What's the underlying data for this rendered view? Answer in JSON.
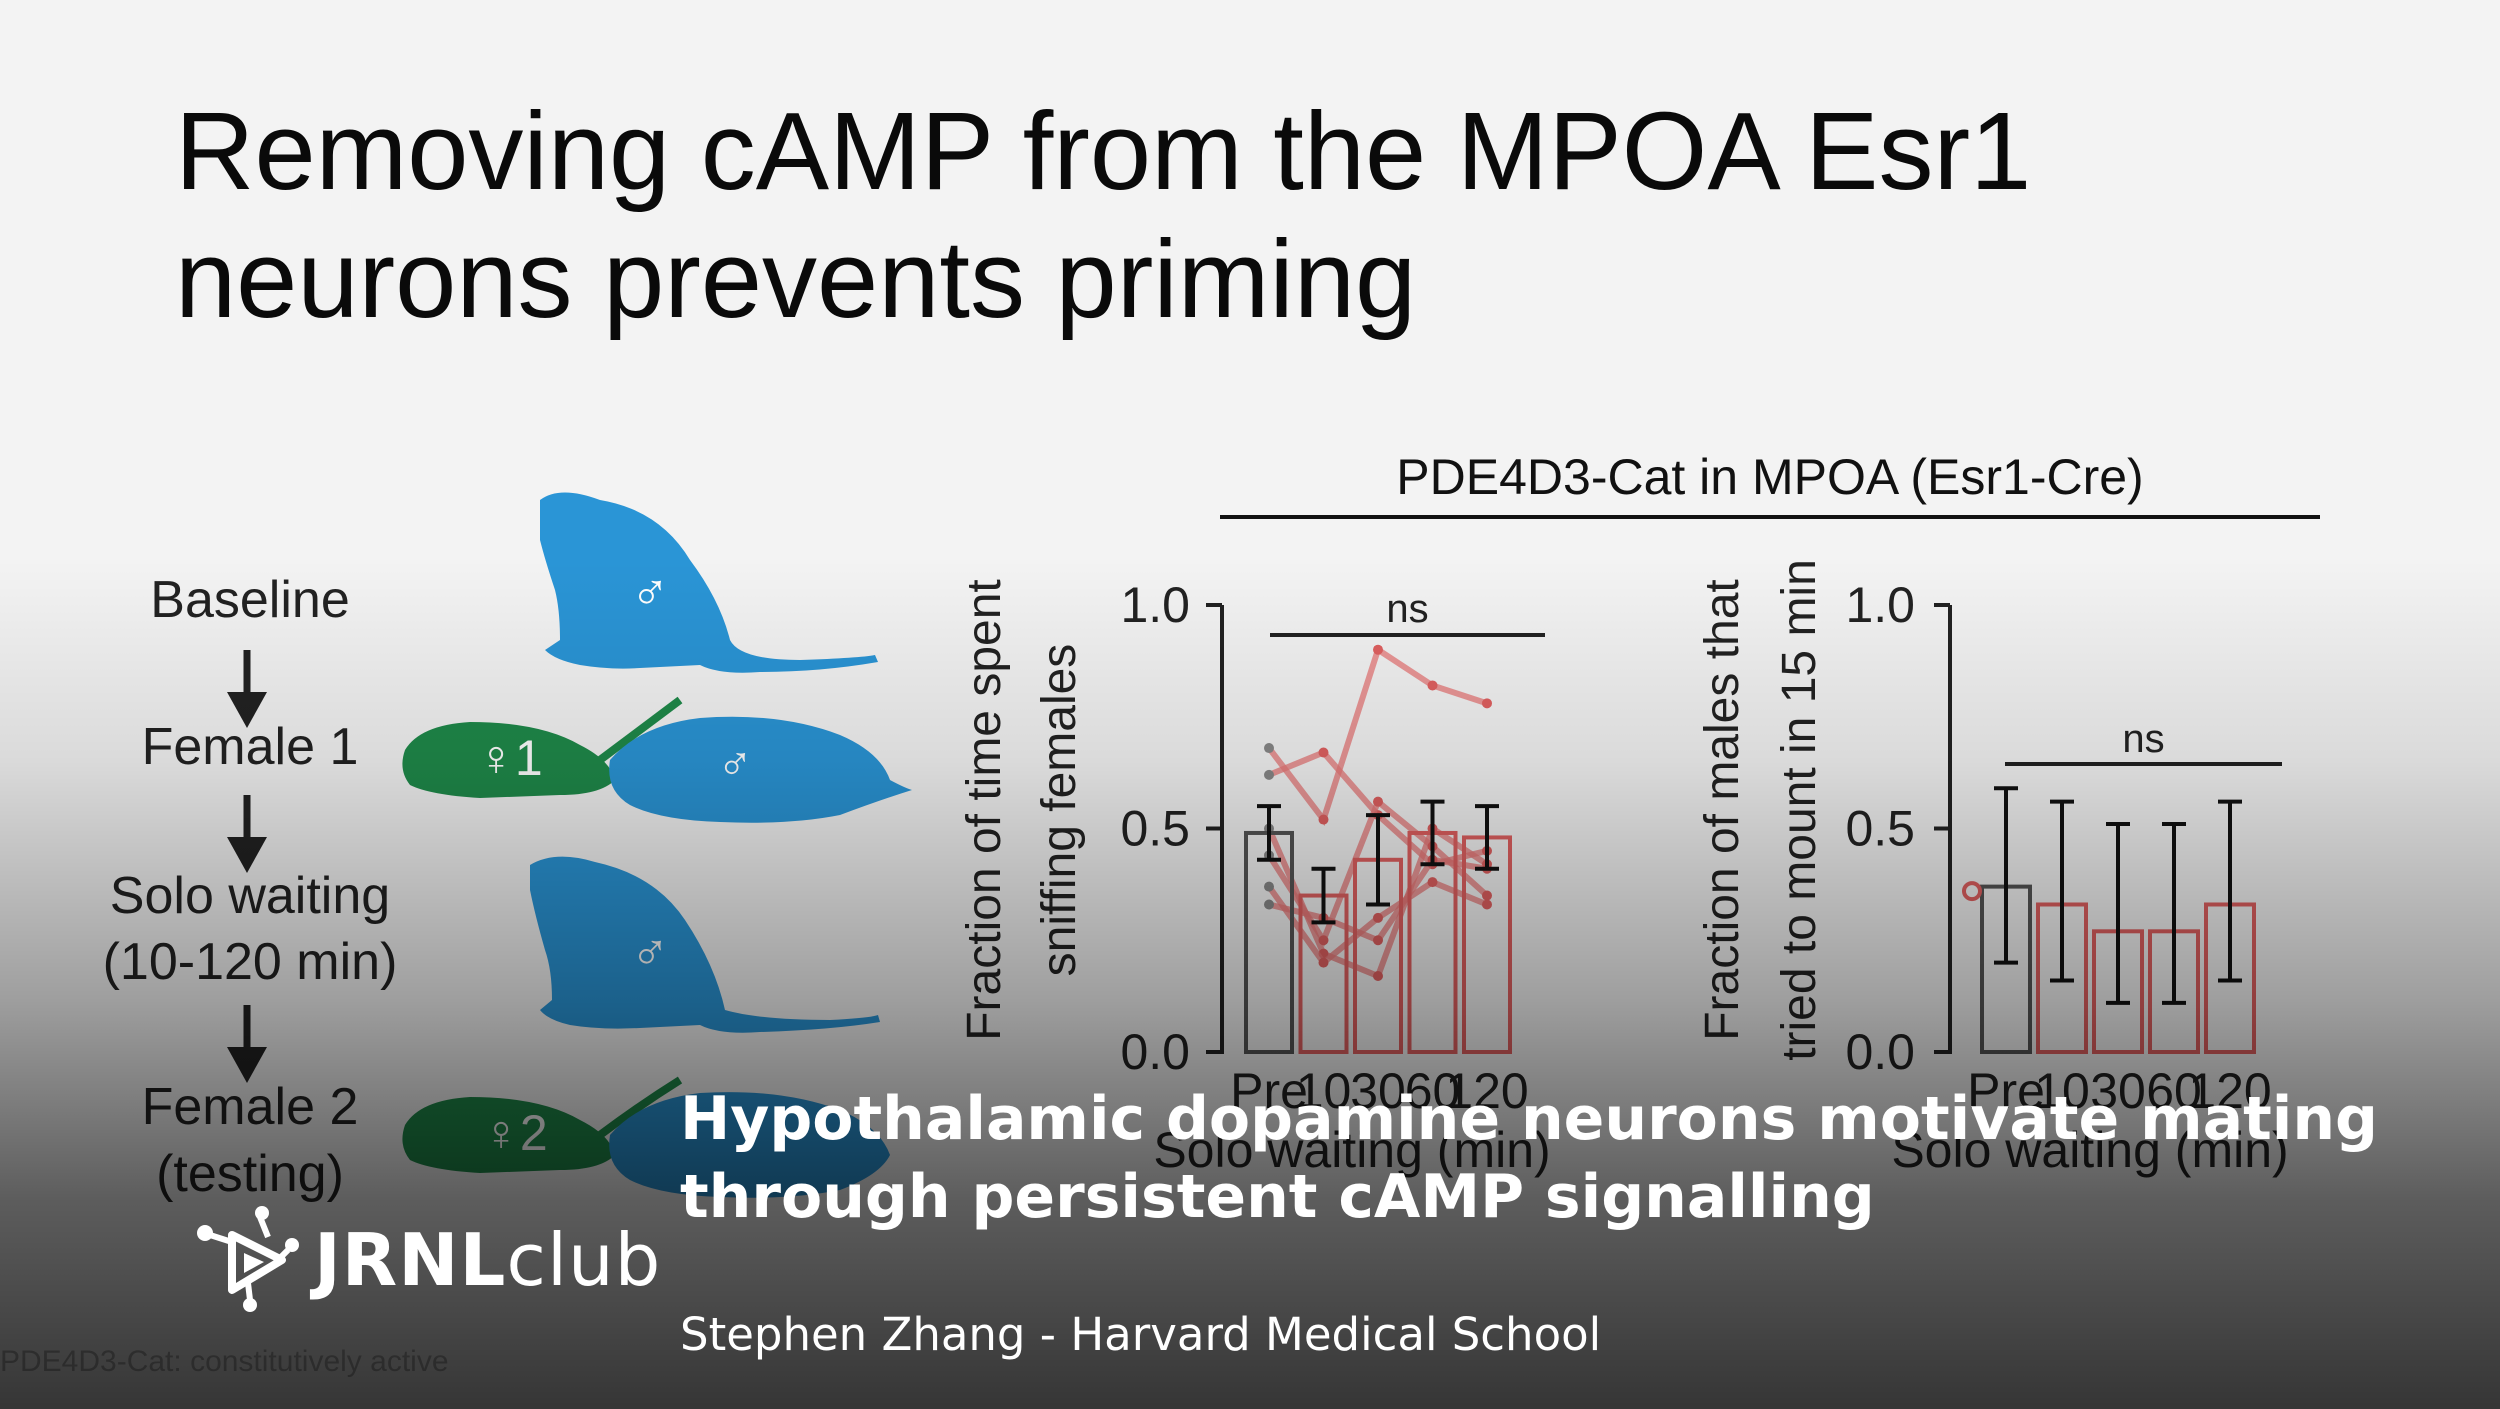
{
  "slide": {
    "title_line1": "Removing cAMP from the MPOA Esr1",
    "title_line2": "neurons prevents priming",
    "diagram": {
      "steps": [
        {
          "label": "Baseline"
        },
        {
          "label": "Female 1"
        },
        {
          "label": "Solo waiting"
        },
        {
          "label": "(10-120 min)"
        },
        {
          "label": "Female 2"
        },
        {
          "label": "(testing)"
        }
      ],
      "male_symbol": "♂",
      "female1_label": "♀1",
      "female2_label": "♀2",
      "colors": {
        "male": "#2a95d6",
        "female": "#1f8a4a"
      }
    },
    "figure_title": "PDE4D3-Cat in MPOA (Esr1-Cre)",
    "footnote": "PDE4D3-Cat: constitutively active"
  },
  "chart_data": [
    {
      "type": "bar",
      "ylabel_line1": "Fraction of time spent",
      "ylabel_line2": "sniffing females",
      "xlabel": "Solo waiting (min)",
      "categories": [
        "Pre",
        "10",
        "30",
        "60",
        "120"
      ],
      "ylim": [
        0,
        1.0
      ],
      "yticks": [
        "0.0",
        "0.5",
        "1.0"
      ],
      "values": [
        0.49,
        0.35,
        0.43,
        0.49,
        0.48
      ],
      "errors": [
        0.06,
        0.06,
        0.1,
        0.07,
        0.07
      ],
      "significance": "ns",
      "colors": {
        "pre": "#555555",
        "test": "#e06060"
      },
      "individual_series": [
        {
          "values": [
            0.68,
            0.52,
            0.9,
            0.82,
            0.78
          ]
        },
        {
          "values": [
            0.62,
            0.67,
            0.53,
            0.42,
            0.45
          ]
        },
        {
          "values": [
            0.5,
            0.22,
            0.17,
            0.5,
            0.42
          ]
        },
        {
          "values": [
            0.44,
            0.25,
            0.56,
            0.46,
            0.35
          ]
        },
        {
          "values": [
            0.33,
            0.3,
            0.25,
            0.43,
            0.41
          ]
        },
        {
          "values": [
            0.37,
            0.2,
            0.3,
            0.38,
            0.33
          ]
        }
      ]
    },
    {
      "type": "bar",
      "ylabel_line1": "Fraction of males that",
      "ylabel_line2": "tried to mount in 15 min",
      "xlabel": "Solo waiting (min)",
      "categories": [
        "Pre",
        "10",
        "30",
        "60",
        "120"
      ],
      "ylim": [
        0,
        1.0
      ],
      "yticks": [
        "0.0",
        "0.5",
        "1.0"
      ],
      "values": [
        0.37,
        0.33,
        0.27,
        0.27,
        0.33
      ],
      "error_low": [
        0.2,
        0.16,
        0.11,
        0.11,
        0.16
      ],
      "error_high": [
        0.59,
        0.56,
        0.51,
        0.51,
        0.56
      ],
      "significance": "ns",
      "colors": {
        "pre": "#555555",
        "test": "#e06060"
      }
    }
  ],
  "video_overlay": {
    "title_line1": "Hypothalamic dopamine neurons motivate mating",
    "title_line2": "through persistent cAMP signalling",
    "author": "Stephen Zhang - Harvard Medical School",
    "brand_bold": "JRNL",
    "brand_light": "club",
    "brand_icon": "molecule-play-icon"
  }
}
